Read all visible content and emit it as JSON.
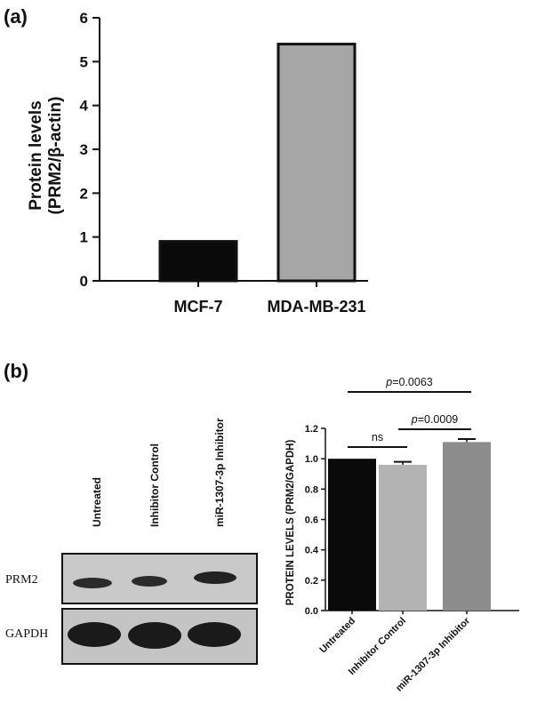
{
  "panels": {
    "a_label": "(a)",
    "b_label": "(b)"
  },
  "chart_data": [
    {
      "type": "bar",
      "panel": "(a)",
      "title": "",
      "ylabel_line1": "Protein levels",
      "ylabel_line2": "(PRM2/β-actin)",
      "xlabel": "",
      "categories": [
        "MCF-7",
        "MDA-MB-231"
      ],
      "values": [
        0.9,
        5.4
      ],
      "bar_colors": [
        "#0a0a0a",
        "#a6a6a6"
      ],
      "ylim": [
        0,
        6
      ],
      "yticks": [
        "0",
        "1",
        "2",
        "3",
        "4",
        "5",
        "6"
      ],
      "grid": false,
      "legend": "none"
    },
    {
      "type": "bar",
      "panel": "(b)",
      "title": "",
      "ylabel": "PROTEIN LEVELS (PRM2/GAPDH)",
      "xlabel": "",
      "categories": [
        "Untreated",
        "Inhibitor Control",
        "miR-1307-3p Inhibitor"
      ],
      "values": [
        1.0,
        0.96,
        1.11
      ],
      "errors": [
        0.0,
        0.02,
        0.02
      ],
      "bar_colors": [
        "#0a0a0a",
        "#b3b3b3",
        "#8c8c8c"
      ],
      "ylim": [
        0,
        1.2
      ],
      "yticks": [
        "0.0",
        "0.2",
        "0.4",
        "0.6",
        "0.8",
        "1.0",
        "1.2"
      ],
      "grid": false,
      "legend": "none",
      "annotations": [
        {
          "from": 0,
          "to": 1,
          "p_prefix": "",
          "text": "ns"
        },
        {
          "from": 1,
          "to": 2,
          "p_prefix": "p",
          "text": "=0.0009"
        },
        {
          "from": 0,
          "to": 2,
          "p_prefix": "p",
          "text": "=0.0063"
        }
      ]
    }
  ],
  "western_blot": {
    "lanes": [
      "Untreated",
      "Inhibitor Control",
      "miR-1307-3p Inhibitor"
    ],
    "rows": [
      {
        "label": "PRM2"
      },
      {
        "label": "GAPDH"
      }
    ]
  }
}
